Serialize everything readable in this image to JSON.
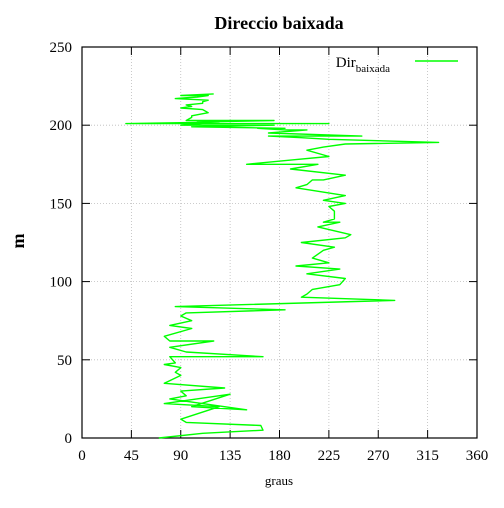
{
  "chart_data": {
    "type": "line",
    "title": "Direccio baixada",
    "xlabel": "graus",
    "ylabel": "m",
    "xlim": [
      0,
      360
    ],
    "ylim": [
      0,
      250
    ],
    "xticks": [
      0,
      45,
      90,
      135,
      180,
      225,
      270,
      315,
      360
    ],
    "yticks": [
      0,
      50,
      100,
      150,
      200,
      250
    ],
    "grid": true,
    "legend_position": "top-right",
    "colors": {
      "series": "#00ff00",
      "grid": "#bbbbbb",
      "axes": "#000000"
    },
    "series": [
      {
        "name_main": "Dir",
        "name_sub": "baixada",
        "color": "#00ff00",
        "x": [
          70,
          110,
          165,
          163,
          95,
          90,
          125,
          75,
          135,
          100,
          150,
          80,
          95,
          90,
          130,
          75,
          90,
          85,
          90,
          75,
          85,
          80,
          165,
          95,
          80,
          120,
          80,
          75,
          100,
          80,
          100,
          90,
          95,
          185,
          85,
          285,
          200,
          205,
          210,
          235,
          240,
          205,
          235,
          195,
          225,
          210,
          220,
          230,
          200,
          240,
          245,
          215,
          235,
          220,
          230,
          230,
          225,
          240,
          220,
          240,
          195,
          205,
          210,
          220,
          240,
          190,
          215,
          150,
          195,
          225,
          205,
          220,
          240,
          325,
          225,
          200,
          170,
          255,
          170,
          205,
          185,
          160,
          185,
          100,
          175,
          90,
          110,
          225,
          90,
          40,
          125,
          105,
          175,
          95,
          100,
          100,
          115,
          110,
          90,
          100,
          95,
          110,
          110,
          115,
          85,
          105,
          115,
          90,
          120
        ],
        "y": [
          0,
          3,
          5,
          8,
          10,
          12,
          20,
          22,
          28,
          20,
          18,
          25,
          27,
          30,
          32,
          35,
          40,
          42,
          45,
          47,
          48,
          52,
          52,
          55,
          58,
          62,
          62,
          65,
          70,
          72,
          75,
          78,
          80,
          82,
          84,
          88,
          90,
          92,
          95,
          98,
          102,
          105,
          108,
          110,
          112,
          115,
          120,
          122,
          125,
          128,
          130,
          135,
          138,
          138,
          140,
          145,
          148,
          150,
          152,
          155,
          160,
          162,
          165,
          165,
          168,
          172,
          175,
          175,
          178,
          180,
          184,
          186,
          188,
          189,
          191,
          192,
          193,
          193,
          195,
          197,
          197,
          198,
          198,
          199,
          200,
          200,
          201,
          201,
          201,
          201,
          202,
          202,
          203,
          203,
          205,
          206,
          208,
          210,
          211,
          212,
          213,
          214,
          215,
          216,
          217,
          218,
          219,
          219,
          220
        ]
      }
    ]
  }
}
